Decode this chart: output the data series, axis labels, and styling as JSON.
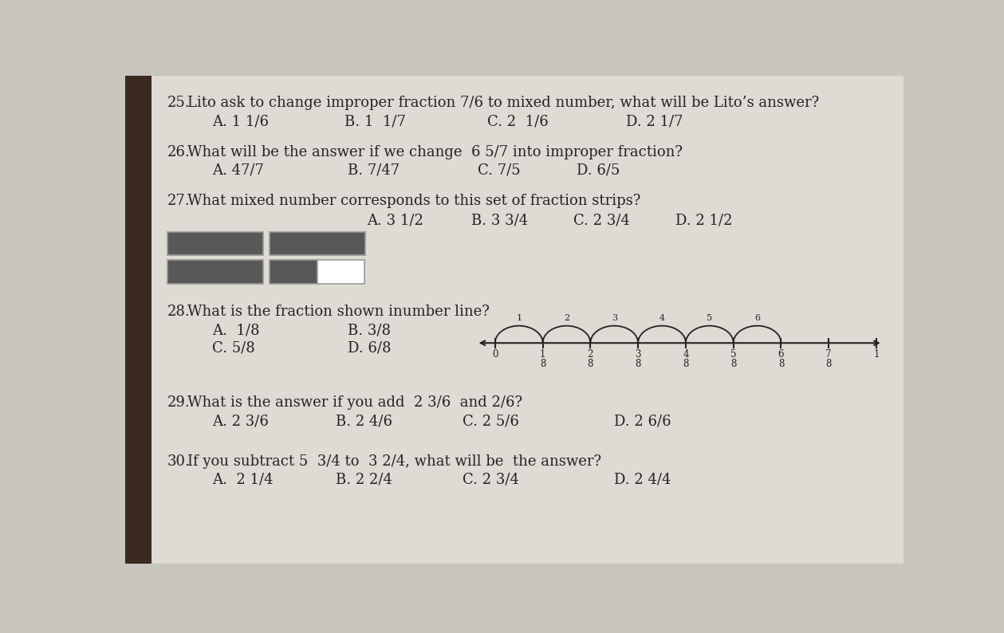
{
  "bg_color": "#c8c4be",
  "paper_color": "#dedad4",
  "spine_color": "#3a2a20",
  "text_color": "#222222",
  "q25_text": "Lito ask to change improper fraction 7/6 to mixed number, what will be Lito’s answer?",
  "q25_choices": [
    "A. 1 1/6",
    "B. 1  1/7",
    "C. 2  1/6",
    "D. 2 1/7"
  ],
  "q26_text": "What will be the answer if we change  6 5/7 into improper fraction?",
  "q26_choices": [
    "A. 47/7",
    "B. 7/47",
    "C. 7/5",
    "D. 6/5"
  ],
  "q27_text": "What mixed number corresponds to this set of fraction strips?",
  "q27_choices": [
    "A. 3 1/2",
    "B. 3 3/4",
    "C. 2 3/4",
    "D. 2 1/2"
  ],
  "q28_text": "What is the fraction shown inumber line?",
  "q28_choices_row1": [
    "A.  1/8",
    "B. 3/8"
  ],
  "q28_choices_row2": [
    "C. 5/8",
    "D. 6/8"
  ],
  "q29_text": "What is the answer if you add  2 3/6  and 2/6?",
  "q29_choices": [
    "A. 2 3/6",
    "B. 2 4/6",
    "C. 2 5/6",
    "D. 2 6/6"
  ],
  "q30_text": "If you subtract 5  3/4 to  3 2/4, what will be  the answer?",
  "q30_choices": [
    "A.  2 1/4",
    "B. 2 2/4",
    "C. 2 3/4",
    "D. 2 4/4"
  ],
  "nl_labels": [
    "0",
    "1\n8",
    "2\n8",
    "3\n8",
    "4\n8",
    "5\n8",
    "6\n8",
    "7\n8",
    "1"
  ],
  "strip_dark": "#585858",
  "strip_border": "#999999"
}
